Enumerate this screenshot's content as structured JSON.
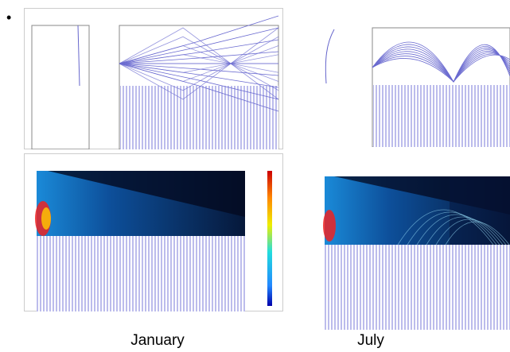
{
  "captions": [
    "January",
    "July"
  ]
}
